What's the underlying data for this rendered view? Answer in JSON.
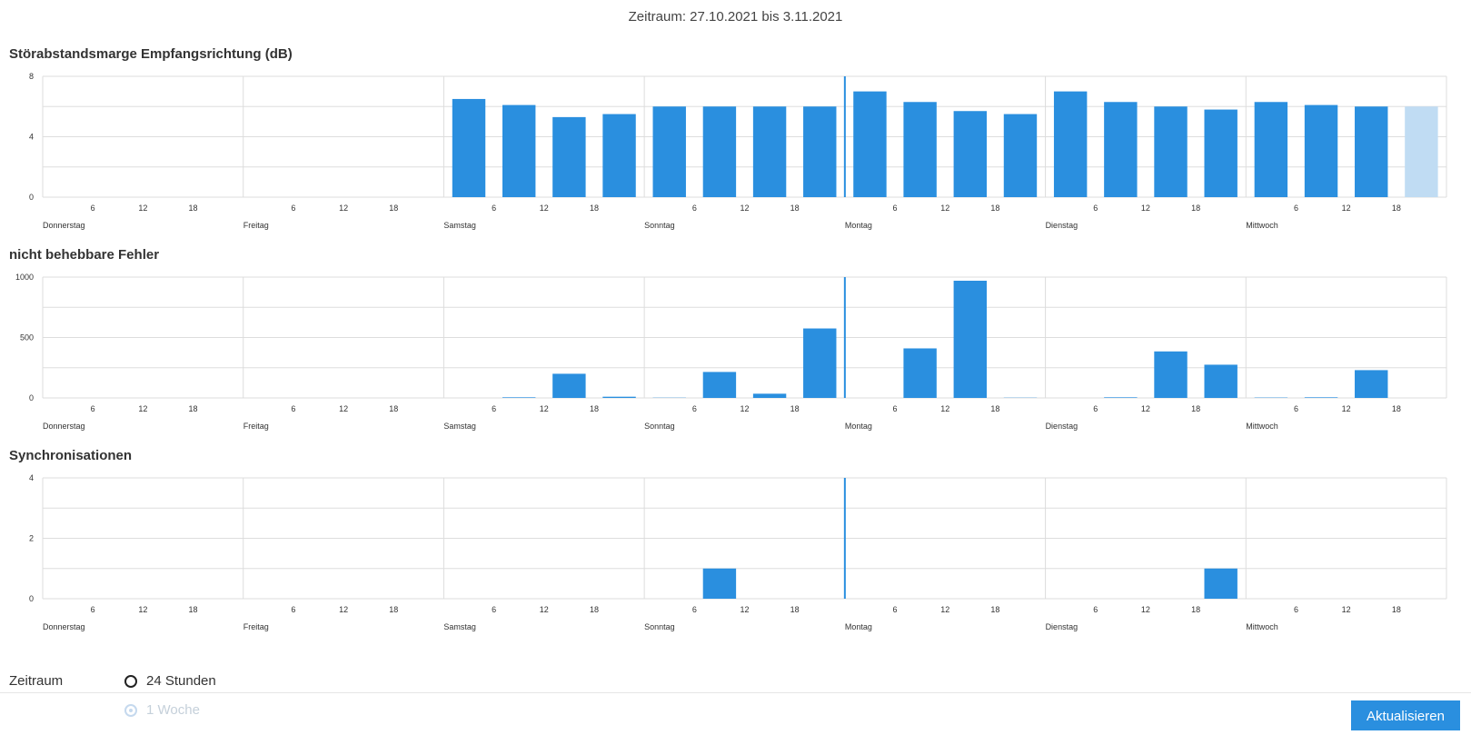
{
  "header": {
    "range_text": "Zeitraum: 27.10.2021 bis 3.11.2021"
  },
  "colors": {
    "bar": "#2a8fdf",
    "bar_light": "#c0dcf3",
    "grid": "#dddddd",
    "now_line": "#2a8fdf"
  },
  "chart_data": [
    {
      "type": "bar",
      "title": "Störabstandsmarge Empfangsrichtung (dB)",
      "ylim": [
        0,
        8
      ],
      "yticks": [
        0,
        4,
        8
      ],
      "days": [
        "Donnerstag",
        "Freitag",
        "Samstag",
        "Sonntag",
        "Montag",
        "Dienstag",
        "Mittwoch"
      ],
      "hour_ticks": [
        "6",
        "12",
        "18"
      ],
      "values": [
        null,
        null,
        null,
        null,
        null,
        null,
        null,
        null,
        6.5,
        6.1,
        5.3,
        5.5,
        6.0,
        6.0,
        6.0,
        6.0,
        7.0,
        6.3,
        5.7,
        5.5,
        7.0,
        6.3,
        6.0,
        5.8,
        6.3,
        6.1,
        6.0,
        6.0
      ],
      "partial_last": true,
      "grid": true
    },
    {
      "type": "bar",
      "title": "nicht behebbare Fehler",
      "ylim": [
        0,
        1000
      ],
      "yticks": [
        0,
        500,
        1000
      ],
      "days": [
        "Donnerstag",
        "Freitag",
        "Samstag",
        "Sonntag",
        "Montag",
        "Dienstag",
        "Mittwoch"
      ],
      "hour_ticks": [
        "6",
        "12",
        "18"
      ],
      "values": [
        null,
        null,
        null,
        null,
        null,
        null,
        null,
        null,
        0,
        5,
        200,
        10,
        2,
        215,
        35,
        575,
        0,
        410,
        970,
        2,
        0,
        5,
        385,
        275,
        3,
        5,
        230,
        0
      ],
      "partial_last": false,
      "grid": true
    },
    {
      "type": "bar",
      "title": "Synchronisationen",
      "ylim": [
        0,
        4
      ],
      "yticks": [
        0,
        2,
        4
      ],
      "days": [
        "Donnerstag",
        "Freitag",
        "Samstag",
        "Sonntag",
        "Montag",
        "Dienstag",
        "Mittwoch"
      ],
      "hour_ticks": [
        "6",
        "12",
        "18"
      ],
      "values": [
        null,
        null,
        null,
        null,
        null,
        null,
        null,
        null,
        0,
        0,
        0,
        0,
        0,
        1,
        0,
        0,
        0,
        0,
        0,
        0,
        0,
        0,
        0,
        1,
        0,
        0,
        0,
        0
      ],
      "partial_last": false,
      "grid": true
    }
  ],
  "footer": {
    "period_label": "Zeitraum",
    "options": [
      {
        "label": "24 Stunden",
        "selected": false,
        "disabled": false
      },
      {
        "label": "1 Woche",
        "selected": true,
        "disabled": true
      }
    ],
    "update_label": "Aktualisieren"
  }
}
